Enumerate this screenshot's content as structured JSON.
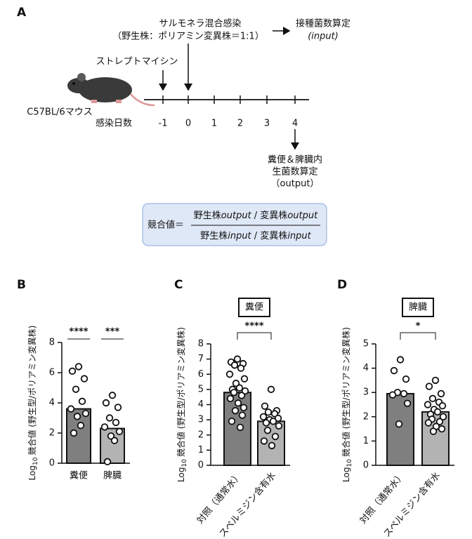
{
  "panel_a": {
    "label": "A",
    "infection": "サルモネラ混合感染",
    "ratio": "（野生株：ポリアミン変異株＝1:1）",
    "inoculum": "接種菌数算定",
    "inoculum_note": "(input)",
    "antibiotic": "ストレプトマイシン",
    "mouse": "C57BL/6マウス",
    "days_label": "感染日数",
    "days": [
      -1,
      0,
      1,
      2,
      3,
      4
    ],
    "output_1": "糞便＆脾臓内",
    "output_2": "生菌数算定",
    "output_3": "（output）",
    "formula": {
      "lhs": "競合値＝",
      "numerator": [
        "野生株",
        "output",
        " / 変異株",
        "output"
      ],
      "denominator": [
        "野生株",
        "input",
        " / 変異株",
        "input"
      ]
    }
  },
  "chart_data": [
    {
      "type": "bar",
      "title": "B",
      "ylabel_prefix": "Log",
      "ylabel_sub": "10",
      "ylabel": "競合値 (野生型/ポリアミン変異株)",
      "categories": [
        "糞便",
        "脾臓"
      ],
      "values": [
        3.6,
        2.3
      ],
      "colors": [
        "#7f7f7f",
        "#b3b3b3"
      ],
      "points": [
        [
          6.4,
          6.1,
          5.6,
          4.9,
          4.1,
          3.6,
          3.3,
          3.1,
          2.5,
          2.0
        ],
        [
          4.5,
          4.0,
          3.7,
          3.0,
          2.7,
          2.4,
          2.1,
          1.8,
          1.5,
          0.1
        ]
      ],
      "significance": [
        "****",
        "***"
      ],
      "ylim": [
        0,
        8
      ],
      "yticks": [
        0,
        2,
        4,
        6,
        8
      ]
    },
    {
      "type": "bar",
      "title": "C",
      "box_label": "糞便",
      "ylabel_prefix": "Log",
      "ylabel_sub": "10",
      "ylabel": "競合値 (野生型/ポリアミン変異株)",
      "categories": [
        "対照（通常水）",
        "スペルミジン含有水"
      ],
      "values": [
        4.8,
        2.9
      ],
      "colors": [
        "#7f7f7f",
        "#b3b3b3"
      ],
      "points": [
        [
          7.0,
          6.8,
          6.7,
          6.6,
          6.4,
          6.0,
          5.7,
          5.4,
          5.1,
          5.0,
          4.9,
          4.8,
          4.6,
          4.4,
          4.1,
          3.8,
          3.6,
          3.3,
          2.9,
          2.5
        ],
        [
          5.0,
          3.9,
          3.6,
          3.5,
          3.4,
          3.2,
          3.1,
          3.0,
          2.9,
          2.8,
          2.6,
          2.3,
          1.9,
          1.6,
          1.3
        ]
      ],
      "significance": "****",
      "ylim": [
        0,
        8
      ],
      "yticks": [
        0,
        1,
        2,
        3,
        4,
        5,
        6,
        7,
        8
      ]
    },
    {
      "type": "bar",
      "title": "D",
      "box_label": "脾臓",
      "ylabel_prefix": "Log",
      "ylabel_sub": "10",
      "ylabel": "競合値 (野生型/ポリアミン変異株)",
      "categories": [
        "対照（通常水）",
        "スペルミジン含有水"
      ],
      "values": [
        2.95,
        2.2
      ],
      "colors": [
        "#7f7f7f",
        "#b3b3b3"
      ],
      "points": [
        [
          4.35,
          3.9,
          3.55,
          3.0,
          2.95,
          2.9,
          2.55,
          1.7
        ],
        [
          3.5,
          3.25,
          2.95,
          2.75,
          2.6,
          2.5,
          2.45,
          2.3,
          2.2,
          2.1,
          2.0,
          1.9,
          1.8,
          1.75,
          1.6,
          1.5,
          1.4
        ]
      ],
      "significance": "*",
      "ylim": [
        0,
        5
      ],
      "yticks": [
        0,
        1,
        2,
        3,
        4,
        5
      ]
    }
  ]
}
